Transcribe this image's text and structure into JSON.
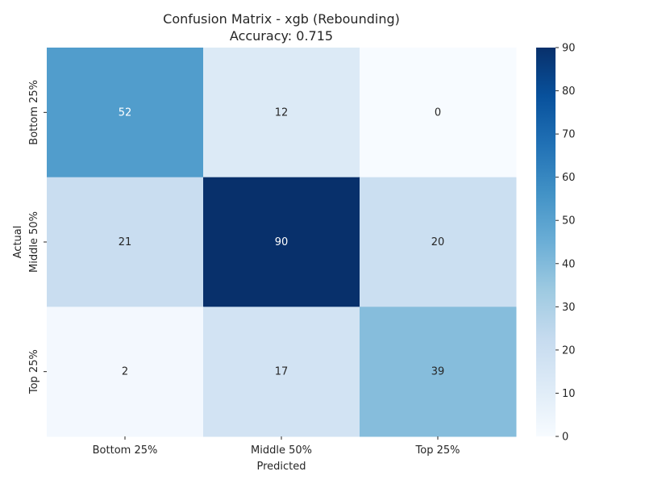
{
  "chart_data": {
    "type": "heatmap",
    "title": "Confusion Matrix - xgb (Rebounding)",
    "subtitle": "Accuracy: 0.715",
    "xlabel": "Predicted",
    "ylabel": "Actual",
    "x_categories": [
      "Bottom 25%",
      "Middle 50%",
      "Top 25%"
    ],
    "y_categories": [
      "Bottom 25%",
      "Middle 50%",
      "Top 25%"
    ],
    "values": [
      [
        52,
        12,
        0
      ],
      [
        21,
        90,
        20
      ],
      [
        2,
        17,
        39
      ]
    ],
    "colormap": "Blues",
    "colorbar": {
      "range": [
        0,
        90
      ],
      "ticks": [
        0,
        10,
        20,
        30,
        40,
        50,
        60,
        70,
        80,
        90
      ]
    }
  }
}
